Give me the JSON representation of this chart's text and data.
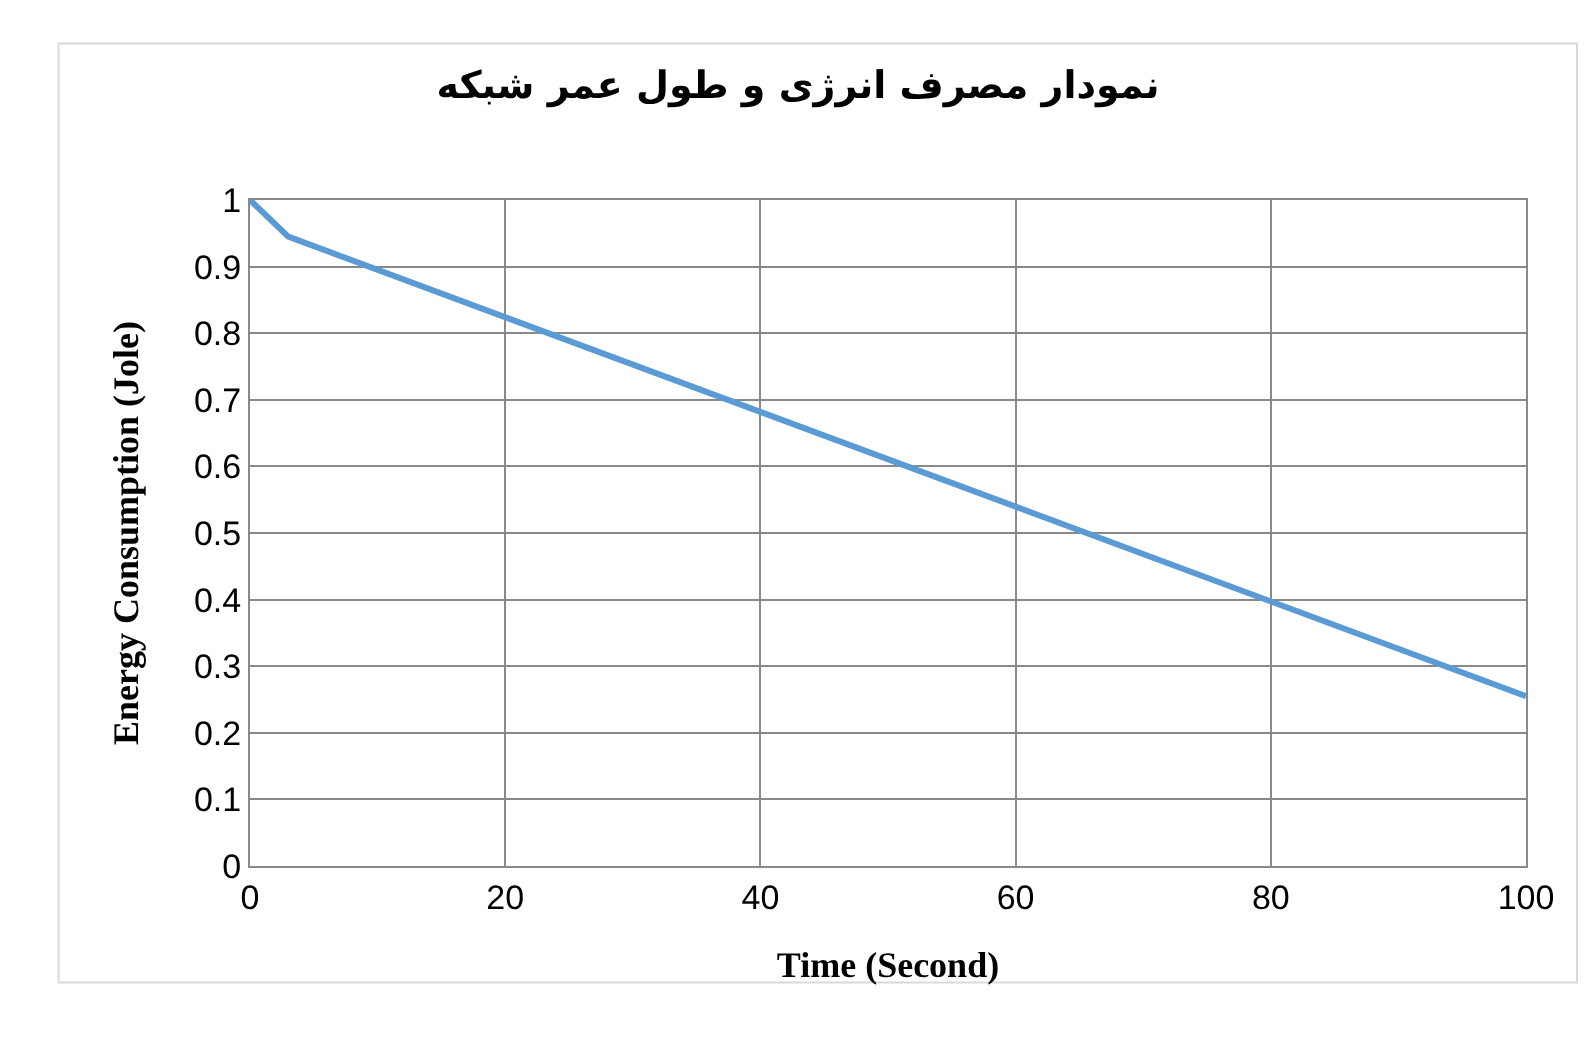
{
  "chart_data": {
    "type": "line",
    "title": "نمودار مصرف انرژی و طول عمر شبکه",
    "xlabel": "Time (Second)",
    "ylabel": "Energy Consumption (Jole)",
    "x": [
      0,
      3,
      100
    ],
    "series": [
      {
        "color": "#5b9bd5",
        "values": [
          1,
          0.945,
          0.255
        ]
      }
    ],
    "xlim": [
      0,
      100
    ],
    "xticks": [
      0,
      20,
      40,
      60,
      80,
      100
    ],
    "ylim": [
      0,
      1
    ],
    "yticks": [
      0,
      0.1,
      0.2,
      0.3,
      0.4,
      0.5,
      0.6,
      0.7,
      0.8,
      0.9,
      1
    ],
    "grid": true,
    "marker": "none",
    "line_style": "solid"
  }
}
